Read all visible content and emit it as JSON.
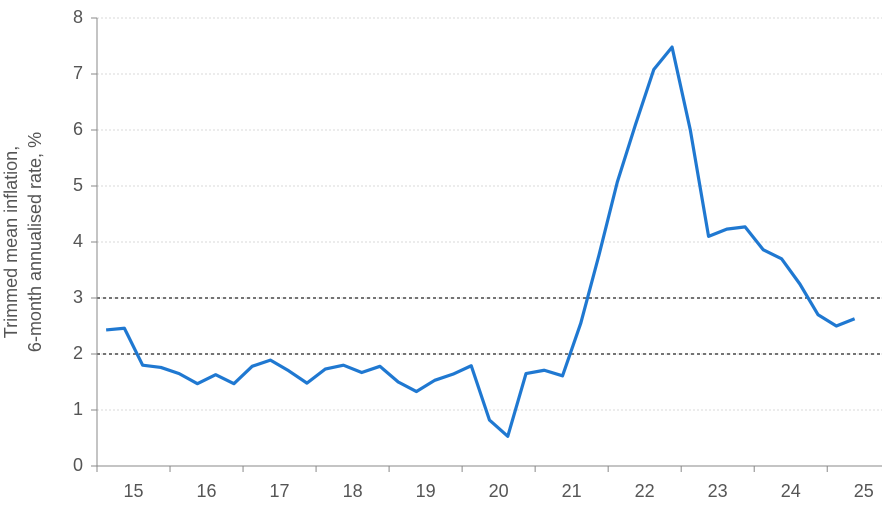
{
  "chart_data": {
    "type": "line",
    "ylabel": [
      "Trimmed mean inflation,",
      "6-month annualised rate, %"
    ],
    "x": [
      15.125,
      15.375,
      15.625,
      15.875,
      16.125,
      16.375,
      16.625,
      16.875,
      17.125,
      17.375,
      17.625,
      17.875,
      18.125,
      18.375,
      18.625,
      18.875,
      19.125,
      19.375,
      19.625,
      19.875,
      20.125,
      20.375,
      20.625,
      20.875,
      21.125,
      21.375,
      21.625,
      21.875,
      22.125,
      22.375,
      22.625,
      22.875,
      23.125,
      23.375,
      23.625,
      23.875,
      24.125,
      24.375,
      24.625,
      24.875,
      25.125,
      25.375
    ],
    "series": [
      {
        "color": "#1f78d1",
        "values": [
          2.43,
          2.46,
          1.8,
          1.76,
          1.65,
          1.47,
          1.63,
          1.47,
          1.78,
          1.89,
          1.7,
          1.48,
          1.73,
          1.8,
          1.67,
          1.78,
          1.5,
          1.33,
          1.53,
          1.64,
          1.79,
          0.82,
          0.53,
          1.65,
          1.71,
          1.61,
          2.55,
          3.77,
          5.07,
          6.1,
          7.08,
          7.48,
          6.0,
          4.1,
          4.23,
          4.27,
          3.86,
          3.7,
          3.25,
          2.7,
          2.5,
          2.63
        ]
      }
    ],
    "xlim": [
      15,
      25.75
    ],
    "xticks": [
      {
        "value": 15.5,
        "label": "15"
      },
      {
        "value": 16.5,
        "label": "16"
      },
      {
        "value": 17.5,
        "label": "17"
      },
      {
        "value": 18.5,
        "label": "18"
      },
      {
        "value": 19.5,
        "label": "19"
      },
      {
        "value": 20.5,
        "label": "20"
      },
      {
        "value": 21.5,
        "label": "21"
      },
      {
        "value": 22.5,
        "label": "22"
      },
      {
        "value": 23.5,
        "label": "23"
      },
      {
        "value": 24.5,
        "label": "24"
      },
      {
        "value": 25.5,
        "label": "25"
      }
    ],
    "ylim": [
      0,
      8
    ],
    "yticks": [
      0,
      1,
      2,
      3,
      4,
      5,
      6,
      7,
      8
    ],
    "hlines": [
      2,
      3
    ],
    "grid": true
  }
}
